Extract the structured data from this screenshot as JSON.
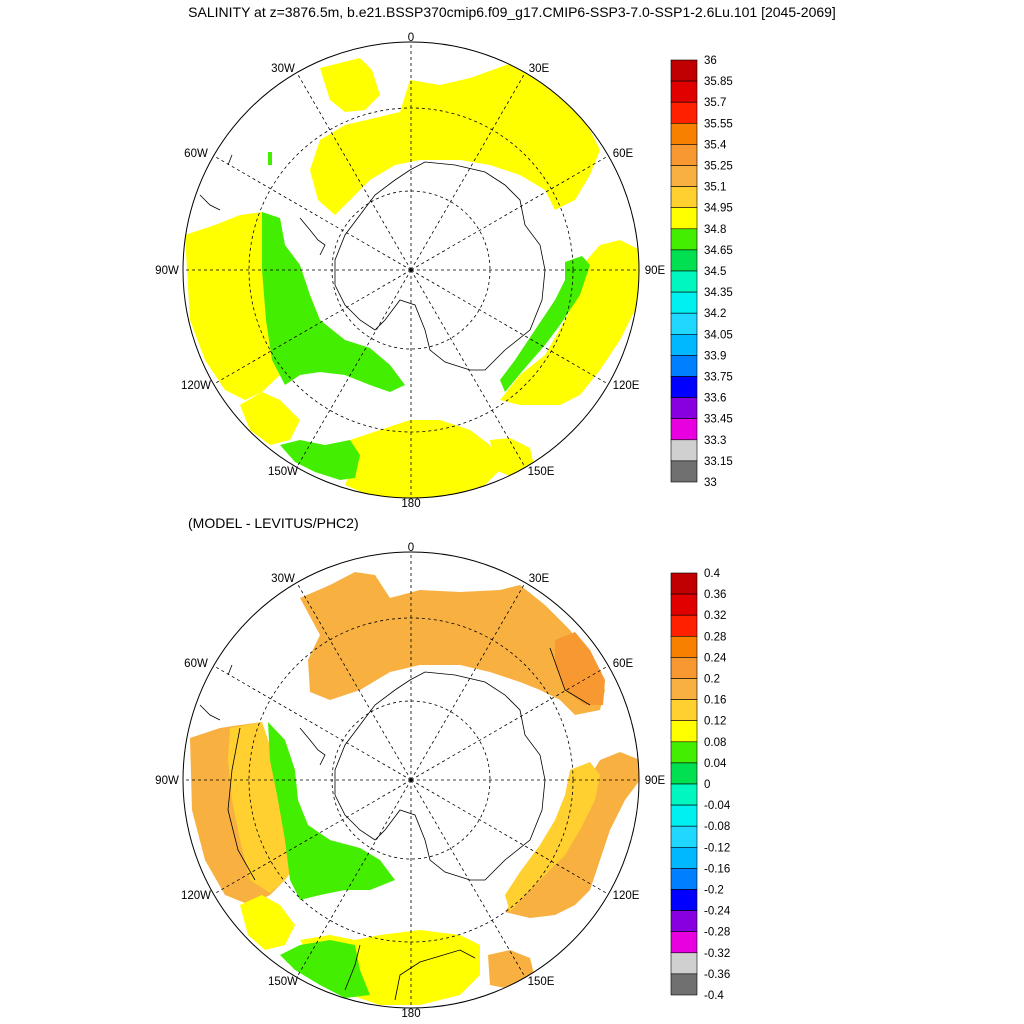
{
  "figure": {
    "title": "SALINITY at z=3876.5m, b.e21.BSSP370cmip6.f09_g17.CMIP6-SSP3-7.0-SSP1-2.6Lu.101 [2045-2069]",
    "subtitle": "(MODEL - LEVITUS/PHC2)"
  },
  "maps": [
    {
      "id": "top",
      "lon_labels": [
        "0",
        "30E",
        "60E",
        "90E",
        "120E",
        "150E",
        "180",
        "150W",
        "120W",
        "90W",
        "60W",
        "30W"
      ],
      "colorbar": {
        "labels": [
          "36",
          "35.85",
          "35.7",
          "35.55",
          "35.4",
          "35.25",
          "35.1",
          "34.95",
          "34.8",
          "34.65",
          "34.5",
          "34.35",
          "34.2",
          "34.05",
          "33.9",
          "33.75",
          "33.6",
          "33.45",
          "33.3",
          "33.15",
          "33"
        ],
        "colors": [
          "#c00000",
          "#e00000",
          "#ff2000",
          "#f88000",
          "#f89830",
          "#f8b040",
          "#ffd030",
          "#ffff00",
          "#44ee00",
          "#00e050",
          "#00f8c0",
          "#00f0f0",
          "#20d8ff",
          "#00b8ff",
          "#0080ff",
          "#0000ff",
          "#8800e0",
          "#e800e0",
          "#d0d0d0",
          "#707070"
        ]
      }
    },
    {
      "id": "bottom",
      "lon_labels": [
        "0",
        "30E",
        "60E",
        "90E",
        "120E",
        "150E",
        "180",
        "150W",
        "120W",
        "90W",
        "60W",
        "30W"
      ],
      "colorbar": {
        "labels": [
          "0.4",
          "0.36",
          "0.32",
          "0.28",
          "0.24",
          "0.2",
          "0.16",
          "0.12",
          "0.08",
          "0.04",
          "0",
          "-0.04",
          "-0.08",
          "-0.12",
          "-0.16",
          "-0.2",
          "-0.24",
          "-0.28",
          "-0.32",
          "-0.36",
          "-0.4"
        ],
        "colors": [
          "#c00000",
          "#e00000",
          "#ff2000",
          "#f88000",
          "#f89830",
          "#f8b040",
          "#ffd030",
          "#ffff00",
          "#44ee00",
          "#00e050",
          "#00f8c0",
          "#00f0f0",
          "#20d8ff",
          "#00b8ff",
          "#0080ff",
          "#0000ff",
          "#8800e0",
          "#e800e0",
          "#d0d0d0",
          "#707070"
        ]
      }
    }
  ],
  "fill_colors": {
    "yellow": "#ffff00",
    "green": "#44ee00",
    "orange": "#f8b040",
    "gold": "#ffd030",
    "dark_orange": "#f89830"
  }
}
